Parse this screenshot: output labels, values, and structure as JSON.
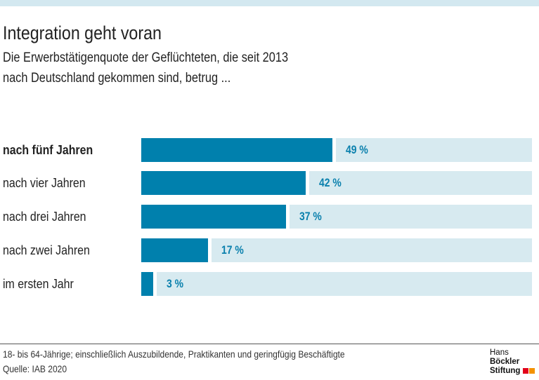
{
  "header": {
    "title": "Integration geht voran",
    "subtitle_lines": [
      "Die Erwerbstätigenquote der Geflüchteten, die seit 2013",
      "nach Deutschland gekommen sind, betrug  ..."
    ]
  },
  "chart_data": {
    "type": "bar",
    "orientation": "horizontal",
    "categories": [
      "nach fünf Jahren",
      "nach vier Jahren",
      "nach drei Jahren",
      "nach zwei Jahren",
      "im ersten Jahr"
    ],
    "values": [
      49,
      42,
      37,
      17,
      3
    ],
    "value_labels": [
      "49 %",
      "42 %",
      "37 %",
      "17 %",
      "3 %"
    ],
    "highlighted_category": "nach fünf Jahren",
    "xlim": [
      0,
      100
    ],
    "unit": "%",
    "colors": {
      "bar": "#0080ad",
      "background_bar": "#d7eaf0",
      "label": "#0a80ad"
    }
  },
  "footer": {
    "note": "18- bis 64-Jährige; einschließlich Auszubildende, Praktikanten und geringfügig Beschäftigte",
    "source": "Quelle: IAB 2020"
  },
  "logo": {
    "line1_a": "Hans",
    "line1_b": "Böckler",
    "line2": "Stiftung",
    "colors": [
      "#e2001a",
      "#f39200"
    ]
  }
}
